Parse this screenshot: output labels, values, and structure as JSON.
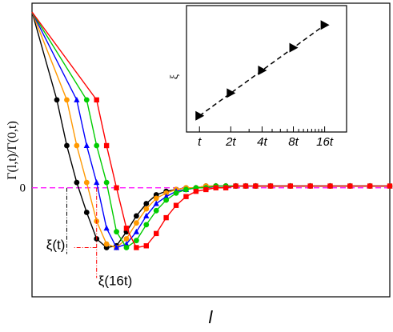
{
  "chart_data": [
    {
      "type": "line",
      "title": "",
      "xlabel": "l",
      "ylabel": "Γ(l,t)/Γ(0,t)",
      "ylim": [
        -0.62,
        1.05
      ],
      "xlim": [
        0,
        72
      ],
      "grid": false,
      "ytick_labels": [
        {
          "value": 0,
          "label": "0"
        }
      ],
      "reference_line": {
        "y": 0,
        "color": "#ff00ff",
        "style": "dashed"
      },
      "series": [
        {
          "color": "#000000",
          "marker": "circle",
          "x": [
            0,
            5,
            7,
            9,
            11,
            13,
            15,
            17,
            19,
            21,
            23,
            25,
            27,
            29,
            31,
            33,
            35,
            37,
            39,
            41,
            43,
            45,
            48,
            52,
            56,
            60,
            64,
            68,
            72
          ],
          "y": [
            1.0,
            0.5,
            0.24,
            0.03,
            -0.14,
            -0.29,
            -0.34,
            -0.33,
            -0.25,
            -0.16,
            -0.09,
            -0.04,
            -0.02,
            -0.01,
            0.0,
            0.0,
            0.01,
            0.01,
            0.01,
            0.01,
            0.01,
            0.01,
            0.01,
            0.01,
            0.01,
            0.01,
            0.01,
            0.01,
            0.01
          ]
        },
        {
          "color": "#ff9900",
          "marker": "circle",
          "x": [
            0,
            7,
            9,
            11,
            13,
            15,
            17,
            19,
            21,
            23,
            25,
            27,
            29,
            31,
            33,
            35,
            37,
            39,
            41,
            43,
            45,
            48,
            52,
            56,
            60,
            64,
            68,
            72
          ],
          "y": [
            1.0,
            0.5,
            0.24,
            0.03,
            -0.19,
            -0.32,
            -0.34,
            -0.29,
            -0.2,
            -0.12,
            -0.06,
            -0.03,
            -0.01,
            0.0,
            0.0,
            0.01,
            0.01,
            0.01,
            0.01,
            0.01,
            0.01,
            0.01,
            0.01,
            0.01,
            0.01,
            0.01,
            0.01,
            0.01
          ]
        },
        {
          "color": "#0000ff",
          "marker": "triangle",
          "x": [
            0,
            9,
            11,
            13,
            15,
            17,
            19,
            21,
            23,
            25,
            27,
            29,
            31,
            33,
            35,
            37,
            39,
            41,
            43,
            45,
            48,
            52,
            56,
            60,
            64,
            68,
            72
          ],
          "y": [
            1.0,
            0.5,
            0.24,
            0.03,
            -0.23,
            -0.34,
            -0.32,
            -0.25,
            -0.16,
            -0.09,
            -0.05,
            -0.02,
            -0.01,
            0.0,
            0.0,
            0.01,
            0.01,
            0.01,
            0.01,
            0.01,
            0.01,
            0.01,
            0.01,
            0.01,
            0.01,
            0.01,
            0.01
          ]
        },
        {
          "color": "#00cc00",
          "marker": "circle",
          "x": [
            0,
            11,
            13,
            15,
            17,
            19,
            21,
            23,
            25,
            27,
            29,
            31,
            33,
            35,
            37,
            39,
            41,
            43,
            45,
            48,
            52,
            56,
            60,
            64,
            68,
            72
          ],
          "y": [
            1.0,
            0.5,
            0.24,
            0.03,
            -0.25,
            -0.34,
            -0.3,
            -0.21,
            -0.13,
            -0.07,
            -0.03,
            -0.01,
            0.0,
            0.0,
            0.01,
            0.01,
            0.01,
            0.01,
            0.01,
            0.01,
            0.01,
            0.01,
            0.01,
            0.01,
            0.01,
            0.01
          ]
        },
        {
          "color": "#ff0000",
          "marker": "square",
          "x": [
            0,
            13,
            15,
            17,
            19,
            21,
            23,
            25,
            27,
            29,
            31,
            33,
            35,
            37,
            39,
            41,
            43,
            45,
            48,
            52,
            56,
            60,
            64,
            68,
            72
          ],
          "y": [
            1.0,
            0.5,
            0.24,
            0.0,
            -0.23,
            -0.34,
            -0.33,
            -0.26,
            -0.17,
            -0.1,
            -0.05,
            -0.02,
            -0.01,
            0.0,
            0.0,
            0.01,
            0.01,
            0.01,
            0.01,
            0.01,
            0.01,
            0.01,
            0.01,
            0.01,
            0.01
          ]
        }
      ],
      "annotations": [
        {
          "text": "ξ(t)",
          "x": 7,
          "y": -0.34,
          "marker_line_color": "#000000"
        },
        {
          "text": "ξ(16t)",
          "x": 13,
          "y": -0.34,
          "marker_line_color": "#ff0000"
        }
      ]
    },
    {
      "type": "scatter",
      "title": "",
      "xlabel": "",
      "ylabel": "ξ",
      "x_scale": "log",
      "x_categories": [
        "t",
        "2t",
        "4t",
        "8t",
        "16t"
      ],
      "x": [
        1,
        2,
        4,
        8,
        16
      ],
      "y": [
        1.0,
        1.7,
        2.4,
        3.1,
        3.8
      ],
      "ylim": [
        0.5,
        4.4
      ],
      "marker": "triangle-right",
      "line_style": "dashed",
      "color": "#000000"
    }
  ]
}
